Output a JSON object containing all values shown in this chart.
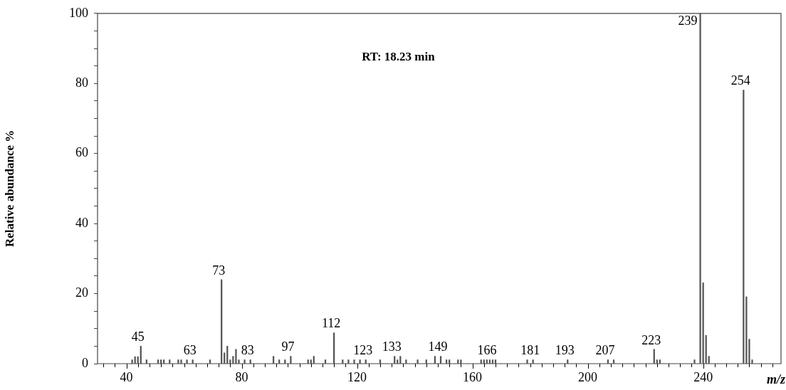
{
  "chart_data": {
    "type": "bar",
    "xlabel": "m/z",
    "ylabel": "Relative abundance %",
    "x": [
      42,
      43,
      44,
      45,
      47,
      51,
      52,
      53,
      55,
      58,
      59,
      61,
      63,
      69,
      73,
      74,
      75,
      76,
      77,
      78,
      79,
      81,
      83,
      91,
      93,
      95,
      97,
      103,
      104,
      105,
      109,
      112,
      115,
      117,
      119,
      121,
      123,
      128,
      133,
      134,
      135,
      137,
      141,
      144,
      147,
      149,
      151,
      152,
      155,
      156,
      163,
      164,
      165,
      166,
      167,
      168,
      179,
      181,
      193,
      207,
      209,
      223,
      224,
      225,
      237,
      239,
      240,
      241,
      242,
      254,
      255,
      256,
      257
    ],
    "values": [
      1.1,
      2,
      2,
      5,
      1.1,
      1.1,
      1.1,
      1.1,
      1.1,
      1.1,
      1.1,
      1.1,
      1.1,
      1.1,
      24,
      3.1,
      5,
      1.1,
      2.1,
      4.1,
      1.1,
      1.1,
      1.1,
      2.1,
      1.1,
      1.1,
      2.1,
      1.1,
      1.1,
      2.1,
      1.1,
      8.8,
      1.1,
      1.1,
      1.1,
      1.1,
      1.1,
      1.1,
      2.1,
      1.1,
      2.1,
      1.1,
      1.1,
      1.1,
      2.1,
      2.1,
      1.1,
      1.1,
      1.1,
      1.1,
      1.1,
      1.1,
      1.1,
      1.1,
      1.1,
      1.1,
      1.1,
      1.1,
      1.1,
      1.1,
      1.1,
      4.1,
      1.1,
      1.1,
      1.1,
      100,
      23.1,
      8.1,
      2.1,
      78.1,
      19.1,
      7,
      1.1
    ],
    "color": "#555555",
    "xlim": [
      30,
      267
    ],
    "xticks": [
      {
        "value": 32,
        "label": null
      },
      {
        "value": 36,
        "label": null
      },
      40,
      {
        "value": 44,
        "label": null
      },
      {
        "value": 48,
        "label": null
      },
      {
        "value": 52,
        "label": null
      },
      {
        "value": 56,
        "label": null
      },
      {
        "value": 60,
        "label": null
      },
      {
        "value": 64,
        "label": null
      },
      {
        "value": 68,
        "label": null
      },
      {
        "value": 72,
        "label": null
      },
      {
        "value": 76,
        "label": null
      },
      80,
      {
        "value": 84,
        "label": null
      },
      {
        "value": 88,
        "label": null
      },
      {
        "value": 92,
        "label": null
      },
      {
        "value": 96,
        "label": null
      },
      {
        "value": 100,
        "label": null
      },
      {
        "value": 104,
        "label": null
      },
      {
        "value": 108,
        "label": null
      },
      {
        "value": 112,
        "label": null
      },
      {
        "value": 116,
        "label": null
      },
      120,
      {
        "value": 124,
        "label": null
      },
      {
        "value": 128,
        "label": null
      },
      {
        "value": 132,
        "label": null
      },
      {
        "value": 136,
        "label": null
      },
      {
        "value": 140,
        "label": null
      },
      {
        "value": 144,
        "label": null
      },
      {
        "value": 148,
        "label": null
      },
      {
        "value": 152,
        "label": null
      },
      {
        "value": 156,
        "label": null
      },
      160,
      {
        "value": 164,
        "label": null
      },
      {
        "value": 168,
        "label": null
      },
      {
        "value": 172,
        "label": null
      },
      {
        "value": 176,
        "label": null
      },
      {
        "value": 180,
        "label": null
      },
      {
        "value": 184,
        "label": null
      },
      {
        "value": 188,
        "label": null
      },
      {
        "value": 192,
        "label": null
      },
      {
        "value": 196,
        "label": null
      },
      200,
      {
        "value": 204,
        "label": null
      },
      {
        "value": 208,
        "label": null
      },
      {
        "value": 212,
        "label": null
      },
      {
        "value": 216,
        "label": null
      },
      {
        "value": 220,
        "label": null
      },
      {
        "value": 224,
        "label": null
      },
      {
        "value": 228,
        "label": null
      },
      {
        "value": 232,
        "label": null
      },
      {
        "value": 236,
        "label": null
      },
      240,
      {
        "value": 244,
        "label": null
      },
      {
        "value": 248,
        "label": null
      },
      {
        "value": 252,
        "label": null
      },
      {
        "value": 256,
        "label": null
      },
      {
        "value": 260,
        "label": null
      },
      {
        "value": 264,
        "label": null
      }
    ],
    "ylim": [
      0,
      100
    ],
    "yticks": [
      0,
      {
        "value": 5,
        "label": null
      },
      {
        "value": 10,
        "label": null
      },
      {
        "value": 15,
        "label": null
      },
      20,
      {
        "value": 25,
        "label": null
      },
      {
        "value": 30,
        "label": null
      },
      {
        "value": 35,
        "label": null
      },
      40,
      {
        "value": 45,
        "label": null
      },
      {
        "value": 50,
        "label": null
      },
      {
        "value": 55,
        "label": null
      },
      60,
      {
        "value": 65,
        "label": null
      },
      {
        "value": 70,
        "label": null
      },
      {
        "value": 75,
        "label": null
      },
      80,
      {
        "value": 85,
        "label": null
      },
      {
        "value": 90,
        "label": null
      },
      {
        "value": 95,
        "label": null
      },
      100
    ],
    "annotations": [
      "RT: 18.23 min",
      {
        "text": "45",
        "x": 45,
        "y": 5
      },
      {
        "text": "63",
        "x": 63,
        "y": 1.1
      },
      {
        "text": "73",
        "x": 73,
        "y": 24
      },
      {
        "text": "83",
        "x": 83,
        "y": 1.1
      },
      {
        "text": "97",
        "x": 97,
        "y": 2.1
      },
      {
        "text": "112",
        "x": 112,
        "y": 8.8
      },
      {
        "text": "123",
        "x": 123,
        "y": 1.1
      },
      {
        "text": "133",
        "x": 133,
        "y": 2.1
      },
      {
        "text": "149",
        "x": 149,
        "y": 2.1
      },
      {
        "text": "166",
        "x": 166,
        "y": 1.1
      },
      {
        "text": "181",
        "x": 181,
        "y": 1.1
      },
      {
        "text": "193",
        "x": 193,
        "y": 1.1
      },
      {
        "text": "207",
        "x": 207,
        "y": 1.1
      },
      {
        "text": "223",
        "x": 223,
        "y": 4.1
      },
      {
        "text": "239",
        "x": 239,
        "y": 100
      },
      {
        "text": "254",
        "x": 254,
        "y": 78.1
      }
    ]
  }
}
